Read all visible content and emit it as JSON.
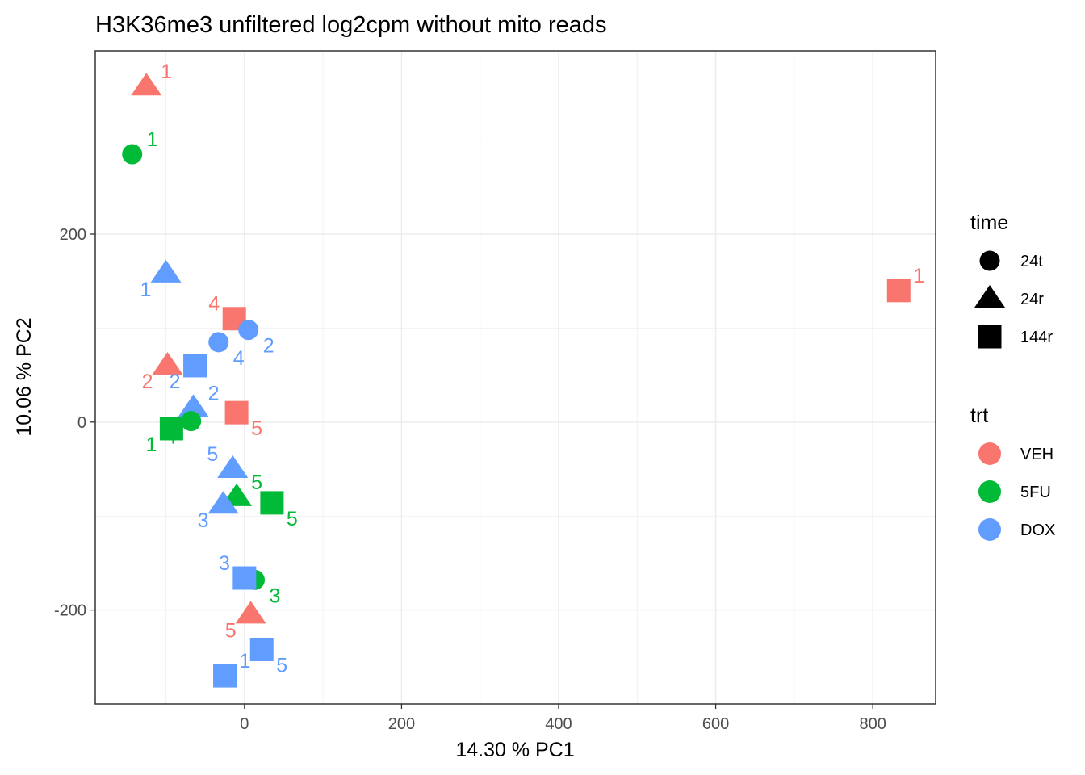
{
  "chart_data": {
    "type": "scatter",
    "title": "H3K36me3 unfiltered log2cpm without mito reads",
    "xlabel": "14.30 % PC1",
    "ylabel": "10.06 % PC2",
    "xlim": [
      -190,
      880
    ],
    "ylim": [
      -300,
      395
    ],
    "xticks": [
      0,
      200,
      400,
      600,
      800
    ],
    "yticks": [
      -200,
      0,
      200
    ],
    "xtick_labels": [
      "0",
      "200",
      "400",
      "600",
      "800"
    ],
    "ytick_labels": [
      "-200",
      "0",
      "200"
    ],
    "grid": true,
    "legend_placement": "right",
    "legend_time": {
      "title": "time",
      "items": [
        {
          "label": "24t",
          "shape": "circle"
        },
        {
          "label": "24r",
          "shape": "triangle"
        },
        {
          "label": "144r",
          "shape": "square"
        }
      ]
    },
    "legend_trt": {
      "title": "trt",
      "items": [
        {
          "label": "VEH",
          "color": "#F8766D"
        },
        {
          "label": "5FU",
          "color": "#00BA38"
        },
        {
          "label": "DOX",
          "color": "#619CFF"
        }
      ]
    },
    "points": [
      {
        "x": -125,
        "y": 357,
        "trt": "VEH",
        "time": "24r",
        "label": "1",
        "lpos": "ur"
      },
      {
        "x": -143,
        "y": 285,
        "trt": "5FU",
        "time": "24t",
        "label": "1",
        "lpos": "ur"
      },
      {
        "x": -100,
        "y": 158,
        "trt": "DOX",
        "time": "24r",
        "label": "1",
        "lpos": "ll"
      },
      {
        "x": 833,
        "y": 140,
        "trt": "VEH",
        "time": "144r",
        "label": "1",
        "lpos": "ur"
      },
      {
        "x": -13,
        "y": 110,
        "trt": "VEH",
        "time": "144r",
        "label": "4",
        "lpos": "ul"
      },
      {
        "x": 5,
        "y": 98,
        "trt": "DOX",
        "time": "24t",
        "label": "2",
        "lpos": "lr"
      },
      {
        "x": -33,
        "y": 85,
        "trt": "DOX",
        "time": "24t",
        "label": "4",
        "lpos": "lr"
      },
      {
        "x": -98,
        "y": 60,
        "trt": "VEH",
        "time": "24r",
        "label": "2",
        "lpos": "ll"
      },
      {
        "x": -63,
        "y": 60,
        "trt": "DOX",
        "time": "144r",
        "label": "2",
        "lpos": "ll"
      },
      {
        "x": -65,
        "y": 15,
        "trt": "DOX",
        "time": "24r",
        "label": "2",
        "lpos": "ur"
      },
      {
        "x": -10,
        "y": 10,
        "trt": "VEH",
        "time": "144r",
        "label": "5",
        "lpos": "lr"
      },
      {
        "x": -68,
        "y": 1,
        "trt": "5FU",
        "time": "24t",
        "label": "4",
        "lpos": "ll"
      },
      {
        "x": -93,
        "y": -7,
        "trt": "5FU",
        "time": "144r",
        "label": "1",
        "lpos": "ll"
      },
      {
        "x": -15,
        "y": -50,
        "trt": "DOX",
        "time": "24r",
        "label": "5",
        "lpos": "ul"
      },
      {
        "x": -10,
        "y": -80,
        "trt": "5FU",
        "time": "24r",
        "label": "5",
        "lpos": "ur"
      },
      {
        "x": 35,
        "y": -86,
        "trt": "5FU",
        "time": "144r",
        "label": "5",
        "lpos": "lr"
      },
      {
        "x": -27,
        "y": -88,
        "trt": "DOX",
        "time": "24r",
        "label": "3",
        "lpos": "ll"
      },
      {
        "x": 13,
        "y": -168,
        "trt": "5FU",
        "time": "24t",
        "label": "3",
        "lpos": "lr"
      },
      {
        "x": 0,
        "y": -166,
        "trt": "DOX",
        "time": "144r",
        "label": "3",
        "lpos": "ul"
      },
      {
        "x": 8,
        "y": -205,
        "trt": "VEH",
        "time": "24r",
        "label": "5",
        "lpos": "ll"
      },
      {
        "x": 22,
        "y": -242,
        "trt": "DOX",
        "time": "144r",
        "label": "5",
        "lpos": "lr"
      },
      {
        "x": -25,
        "y": -270,
        "trt": "DOX",
        "time": "144r",
        "label": "1",
        "lpos": "ur"
      }
    ]
  }
}
